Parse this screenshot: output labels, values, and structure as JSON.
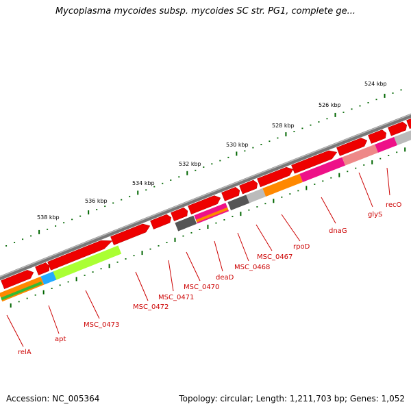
{
  "title": "Mycoplasma mycoides subsp. mycoides SC str. PG1, complete ge...",
  "footer": {
    "accession": "Accession: NC_005364",
    "topology": "Topology: circular; Length: 1,211,703 bp; Genes: 1,052"
  },
  "ruler": {
    "labels": [
      "524 kbp",
      "526 kbp",
      "528 kbp",
      "530 kbp",
      "532 kbp",
      "534 kbp",
      "536 kbp",
      "538 kbp"
    ]
  },
  "colors": {
    "backbone": "#777777",
    "gene_red": "#ee0000",
    "tick_green": "#006600",
    "label_red": "#cc0000",
    "orange": "#ff8800",
    "magenta": "#ee1188",
    "gray": "#bbbbbb",
    "darkgray": "#555555",
    "lime": "#aaff33",
    "cyan": "#22aaff",
    "green": "#33bb33",
    "pink": "#ee8888"
  },
  "gene_labels": [
    "recO",
    "glyS",
    "dnaG",
    "rpoD",
    "MSC_0467",
    "MSC_0468",
    "deaD",
    "MSC_0470",
    "MSC_0471",
    "MSC_0472",
    "MSC_0473",
    "apt",
    "relA"
  ]
}
